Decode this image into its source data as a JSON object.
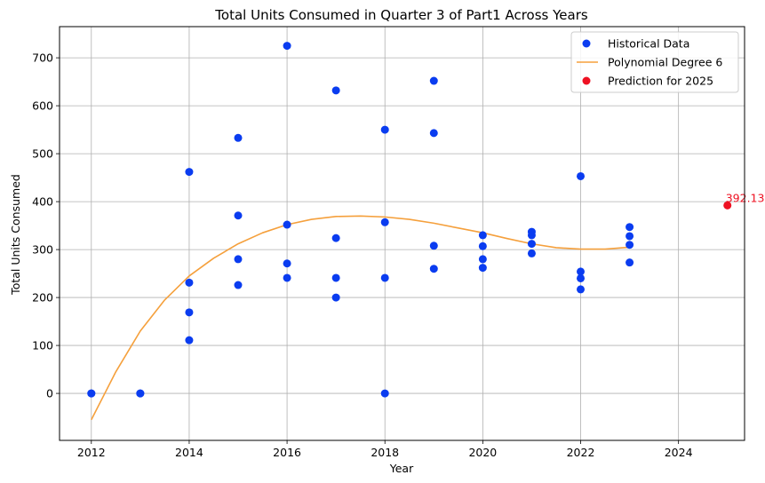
{
  "chart_data": {
    "type": "scatter",
    "title": "Total Units Consumed in Quarter 3 of Part1 Across Years",
    "xlabel": "Year",
    "ylabel": "Total Units Consumed",
    "xlim": [
      2011.35,
      2025.35
    ],
    "ylim": [
      -98,
      765
    ],
    "x_ticks": [
      2012,
      2014,
      2016,
      2018,
      2020,
      2022,
      2024
    ],
    "y_ticks": [
      0,
      100,
      200,
      300,
      400,
      500,
      600,
      700
    ],
    "grid": true,
    "legend_position": "top-right",
    "colors": {
      "historical": "#0a3cf0",
      "fit": "#f5a03c",
      "prediction": "#ee1122",
      "grid": "#b0b0b0"
    },
    "legend": [
      {
        "label": "Historical Data",
        "marker": "dot",
        "color": "#0a3cf0"
      },
      {
        "label": "Polynomial Degree 6",
        "marker": "line",
        "color": "#f5a03c"
      },
      {
        "label": "Prediction for 2025",
        "marker": "dot",
        "color": "#ee1122"
      }
    ],
    "series": [
      {
        "name": "Historical Data",
        "points": [
          [
            2012,
            0
          ],
          [
            2012,
            0
          ],
          [
            2013,
            0
          ],
          [
            2013,
            0
          ],
          [
            2014,
            462
          ],
          [
            2014,
            231
          ],
          [
            2014,
            169
          ],
          [
            2014,
            111
          ],
          [
            2015,
            533
          ],
          [
            2015,
            371
          ],
          [
            2015,
            280
          ],
          [
            2015,
            226
          ],
          [
            2016,
            725
          ],
          [
            2016,
            352
          ],
          [
            2016,
            271
          ],
          [
            2016,
            241
          ],
          [
            2017,
            632
          ],
          [
            2017,
            324
          ],
          [
            2017,
            241
          ],
          [
            2017,
            200
          ],
          [
            2018,
            550
          ],
          [
            2018,
            357
          ],
          [
            2018,
            241
          ],
          [
            2018,
            0
          ],
          [
            2019,
            652
          ],
          [
            2019,
            543
          ],
          [
            2019,
            308
          ],
          [
            2019,
            260
          ],
          [
            2020,
            330
          ],
          [
            2020,
            307
          ],
          [
            2020,
            280
          ],
          [
            2020,
            262
          ],
          [
            2021,
            337
          ],
          [
            2021,
            330
          ],
          [
            2021,
            312
          ],
          [
            2021,
            292
          ],
          [
            2022,
            453
          ],
          [
            2022,
            254
          ],
          [
            2022,
            240
          ],
          [
            2022,
            217
          ],
          [
            2023,
            347
          ],
          [
            2023,
            328
          ],
          [
            2023,
            310
          ],
          [
            2023,
            273
          ]
        ]
      },
      {
        "name": "Polynomial Degree 6",
        "type": "line",
        "points": [
          [
            2012,
            -55
          ],
          [
            2012.5,
            45
          ],
          [
            2013,
            130
          ],
          [
            2013.5,
            195
          ],
          [
            2014,
            245
          ],
          [
            2014.5,
            282
          ],
          [
            2015,
            312
          ],
          [
            2015.5,
            335
          ],
          [
            2016,
            352
          ],
          [
            2016.5,
            363
          ],
          [
            2017,
            369
          ],
          [
            2017.5,
            370
          ],
          [
            2018,
            368
          ],
          [
            2018.5,
            363
          ],
          [
            2019,
            355
          ],
          [
            2019.5,
            345
          ],
          [
            2020,
            335
          ],
          [
            2020.5,
            323
          ],
          [
            2021,
            312
          ],
          [
            2021.5,
            304
          ],
          [
            2022,
            301
          ],
          [
            2022.5,
            301
          ],
          [
            2023,
            305
          ]
        ]
      },
      {
        "name": "Prediction for 2025",
        "points": [
          [
            2025,
            392.13
          ]
        ],
        "label": "392.13"
      }
    ]
  }
}
